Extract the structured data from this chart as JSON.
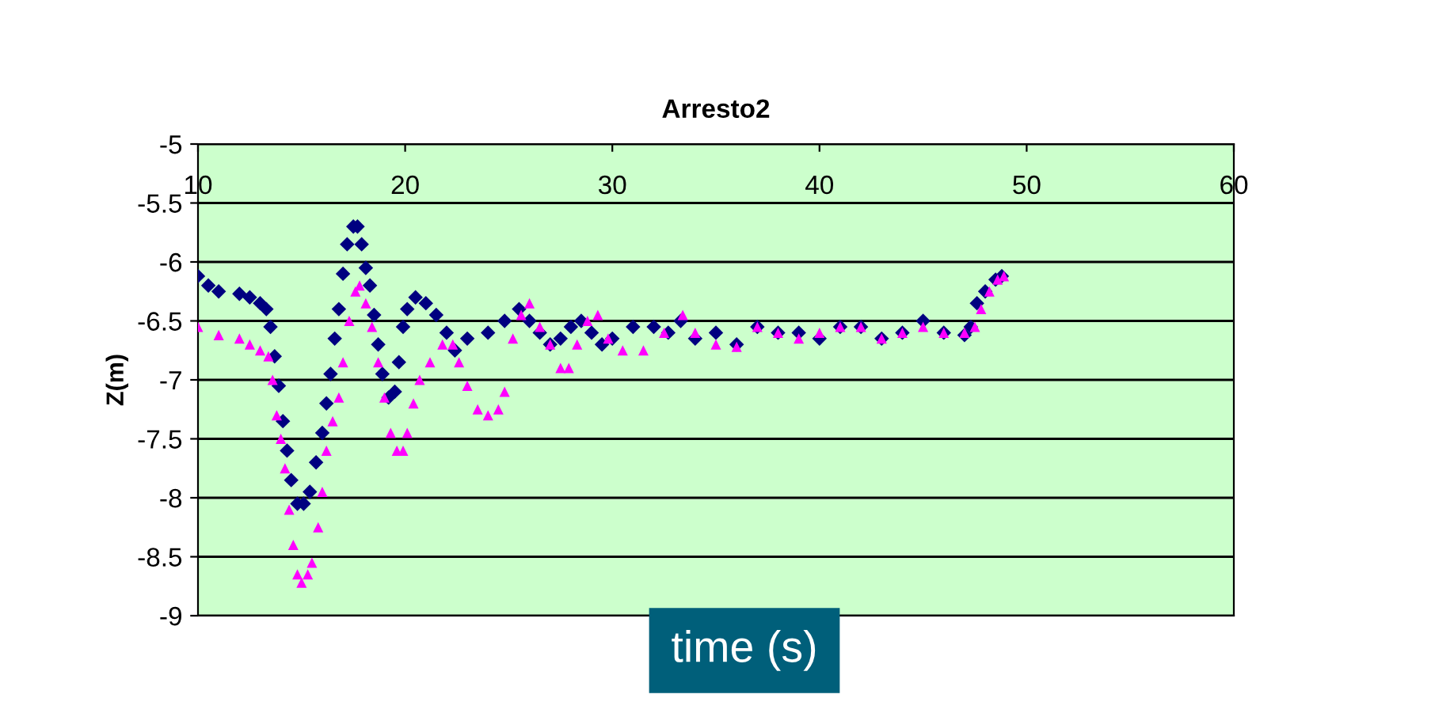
{
  "chart_data": {
    "type": "scatter",
    "title": "Arresto2",
    "xlabel": "time (s)",
    "ylabel": "Z(m)",
    "xlim": [
      10,
      60
    ],
    "xticks": [
      10,
      20,
      30,
      40,
      50,
      60
    ],
    "ylim": [
      -9,
      -5
    ],
    "yticks": [
      -9,
      -8.5,
      -8,
      -7.5,
      -7,
      -6.5,
      -6,
      -5.5,
      -5
    ],
    "grid": "y",
    "series": [
      {
        "color": "#000080",
        "marker": "diamond",
        "x": [
          10,
          10.5,
          11,
          12,
          12.5,
          13,
          13.3,
          13.5,
          13.7,
          13.9,
          14.1,
          14.3,
          14.5,
          14.8,
          15.1,
          15.4,
          15.7,
          16,
          16.2,
          16.4,
          16.6,
          16.8,
          17,
          17.2,
          17.5,
          17.7,
          17.9,
          18.1,
          18.3,
          18.5,
          18.7,
          18.9,
          19.2,
          19.5,
          19.7,
          19.9,
          20.1,
          20.5,
          21,
          21.5,
          22,
          22.4,
          23,
          24,
          24.8,
          25.5,
          26,
          26.5,
          27,
          27.5,
          28,
          28.5,
          29,
          29.5,
          30,
          31,
          32,
          32.7,
          33.3,
          34,
          35,
          36,
          37,
          38,
          39,
          40,
          41,
          42,
          43,
          44,
          45,
          46,
          47,
          47.3,
          47.6,
          48,
          48.5,
          48.8
        ],
        "values": [
          -6.12,
          -6.2,
          -6.25,
          -6.27,
          -6.3,
          -6.35,
          -6.4,
          -6.55,
          -6.8,
          -7.05,
          -7.35,
          -7.6,
          -7.85,
          -8.05,
          -8.05,
          -7.95,
          -7.7,
          -7.45,
          -7.2,
          -6.95,
          -6.65,
          -6.4,
          -6.1,
          -5.85,
          -5.7,
          -5.7,
          -5.85,
          -6.05,
          -6.2,
          -6.45,
          -6.7,
          -6.95,
          -7.15,
          -7.1,
          -6.85,
          -6.55,
          -6.4,
          -6.3,
          -6.35,
          -6.45,
          -6.6,
          -6.75,
          -6.65,
          -6.6,
          -6.5,
          -6.4,
          -6.5,
          -6.6,
          -6.7,
          -6.65,
          -6.55,
          -6.5,
          -6.6,
          -6.7,
          -6.65,
          -6.55,
          -6.55,
          -6.6,
          -6.5,
          -6.65,
          -6.6,
          -6.7,
          -6.55,
          -6.6,
          -6.6,
          -6.65,
          -6.55,
          -6.55,
          -6.65,
          -6.6,
          -6.5,
          -6.6,
          -6.62,
          -6.55,
          -6.35,
          -6.25,
          -6.15,
          -6.12
        ]
      },
      {
        "color": "#ff00ff",
        "marker": "triangle",
        "x": [
          10,
          11,
          12,
          12.5,
          13,
          13.4,
          13.6,
          13.8,
          14,
          14.2,
          14.4,
          14.6,
          14.8,
          15,
          15.3,
          15.5,
          15.8,
          16,
          16.2,
          16.5,
          16.8,
          17,
          17.3,
          17.6,
          17.8,
          18.1,
          18.4,
          18.7,
          19,
          19.3,
          19.6,
          19.9,
          20.1,
          20.4,
          20.7,
          21.2,
          21.8,
          22.3,
          22.6,
          23,
          23.5,
          24,
          24.5,
          24.8,
          25.2,
          25.6,
          26,
          26.5,
          27,
          27.5,
          27.9,
          28.3,
          28.8,
          29.3,
          29.8,
          30.5,
          31.5,
          32.5,
          33.4,
          34,
          35,
          36,
          37,
          38,
          39,
          40,
          41,
          42,
          43,
          44,
          45,
          46,
          47,
          47.5,
          47.8,
          48.2,
          48.6,
          48.9
        ],
        "values": [
          -6.55,
          -6.62,
          -6.65,
          -6.7,
          -6.75,
          -6.8,
          -7.0,
          -7.3,
          -7.5,
          -7.75,
          -8.1,
          -8.4,
          -8.65,
          -8.72,
          -8.65,
          -8.55,
          -8.25,
          -7.95,
          -7.6,
          -7.35,
          -7.15,
          -6.85,
          -6.5,
          -6.25,
          -6.2,
          -6.35,
          -6.55,
          -6.85,
          -7.15,
          -7.45,
          -7.6,
          -7.6,
          -7.45,
          -7.2,
          -7.0,
          -6.85,
          -6.7,
          -6.7,
          -6.85,
          -7.05,
          -7.25,
          -7.3,
          -7.25,
          -7.1,
          -6.65,
          -6.45,
          -6.35,
          -6.55,
          -6.7,
          -6.9,
          -6.9,
          -6.7,
          -6.5,
          -6.45,
          -6.65,
          -6.75,
          -6.75,
          -6.6,
          -6.45,
          -6.6,
          -6.7,
          -6.72,
          -6.55,
          -6.6,
          -6.65,
          -6.6,
          -6.55,
          -6.55,
          -6.65,
          -6.6,
          -6.55,
          -6.6,
          -6.6,
          -6.55,
          -6.4,
          -6.25,
          -6.15,
          -6.12
        ]
      }
    ]
  }
}
